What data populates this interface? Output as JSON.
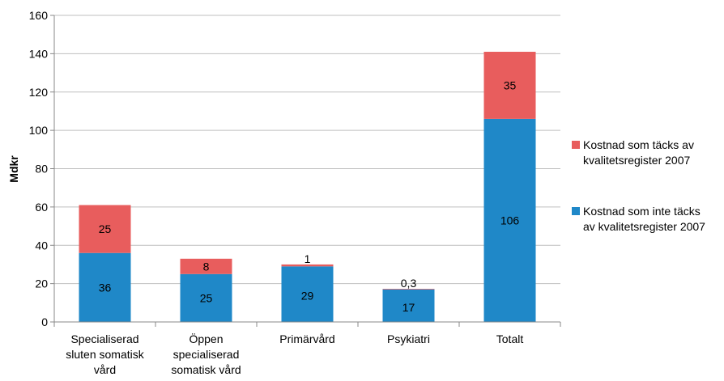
{
  "chart_data": {
    "type": "bar",
    "stacked": true,
    "ylabel": "Mdkr",
    "ylim": [
      0,
      160
    ],
    "yticks": [
      0,
      20,
      40,
      60,
      80,
      100,
      120,
      140,
      160
    ],
    "grid": true,
    "legend_position": "right",
    "categories": [
      [
        "Specialiserad",
        "sluten somatisk",
        "vård"
      ],
      [
        "Öppen",
        "specialiserad",
        "somatisk vård"
      ],
      [
        "Primärvård"
      ],
      [
        "Psykiatri"
      ],
      [
        "Totalt"
      ]
    ],
    "series": [
      {
        "name": [
          "Kostnad som inte täcks",
          "av kvalitetsregister 2007"
        ],
        "color": "#1f88c8",
        "values": [
          36,
          25,
          29,
          17,
          106
        ],
        "labels": [
          "36",
          "25",
          "29",
          "17",
          "106"
        ]
      },
      {
        "name": [
          "Kostnad som täcks av",
          "kvalitetsregister 2007"
        ],
        "color": "#e85d5d",
        "values": [
          25,
          8,
          1,
          0.3,
          35
        ],
        "labels": [
          "25",
          "8",
          "1",
          "0,3",
          "35"
        ]
      }
    ],
    "legend_order": [
      1,
      0
    ]
  }
}
